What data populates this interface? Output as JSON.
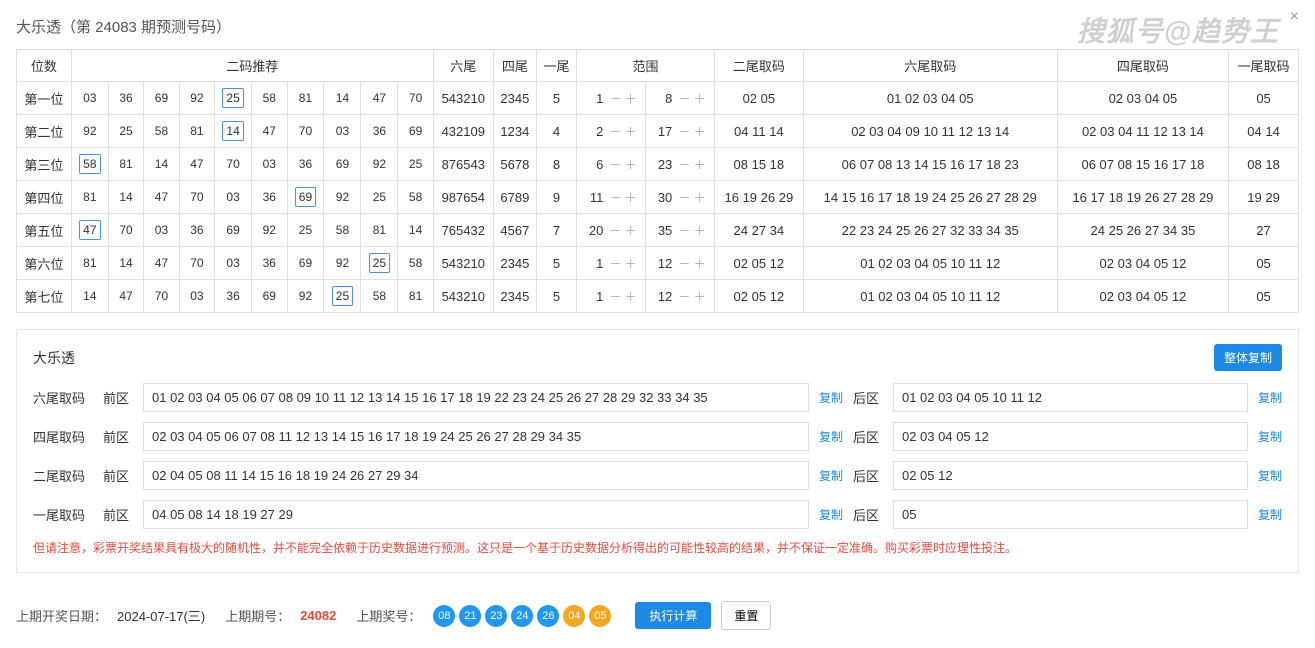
{
  "header": {
    "title": "大乐透（第 24083 期预测号码）",
    "watermark": "搜狐号@趋势王"
  },
  "table": {
    "headers": {
      "pos": "位数",
      "two_code": "二码推荐",
      "six_tail": "六尾",
      "four_tail": "四尾",
      "one_tail": "一尾",
      "range": "范围",
      "two_take": "二尾取码",
      "six_take": "六尾取码",
      "four_take": "四尾取码",
      "one_take": "一尾取码"
    },
    "rows": [
      {
        "pos": "第一位",
        "nums": [
          "03",
          "36",
          "69",
          "92",
          "25",
          "58",
          "81",
          "14",
          "47",
          "70"
        ],
        "hl": 4,
        "six": "543210",
        "four": "2345",
        "one": "5",
        "r1": 1,
        "r2": 8,
        "t2": "02 05",
        "t6": "01 02 03 04 05",
        "t4": "02 03 04 05",
        "t1": "05"
      },
      {
        "pos": "第二位",
        "nums": [
          "92",
          "25",
          "58",
          "81",
          "14",
          "47",
          "70",
          "03",
          "36",
          "69"
        ],
        "hl": 4,
        "six": "432109",
        "four": "1234",
        "one": "4",
        "r1": 2,
        "r2": 17,
        "t2": "04 11 14",
        "t6": "02 03 04 09 10 11 12 13 14",
        "t4": "02 03 04 11 12 13 14",
        "t1": "04 14"
      },
      {
        "pos": "第三位",
        "nums": [
          "58",
          "81",
          "14",
          "47",
          "70",
          "03",
          "36",
          "69",
          "92",
          "25"
        ],
        "hl": 0,
        "six": "876543",
        "four": "5678",
        "one": "8",
        "r1": 6,
        "r2": 23,
        "t2": "08 15 18",
        "t6": "06 07 08 13 14 15 16 17 18 23",
        "t4": "06 07 08 15 16 17 18",
        "t1": "08 18"
      },
      {
        "pos": "第四位",
        "nums": [
          "81",
          "14",
          "47",
          "70",
          "03",
          "36",
          "69",
          "92",
          "25",
          "58"
        ],
        "hl": 6,
        "six": "987654",
        "four": "6789",
        "one": "9",
        "r1": 11,
        "r2": 30,
        "t2": "16 19 26 29",
        "t6": "14 15 16 17 18 19 24 25 26 27 28 29",
        "t4": "16 17 18 19 26 27 28 29",
        "t1": "19 29"
      },
      {
        "pos": "第五位",
        "nums": [
          "47",
          "70",
          "03",
          "36",
          "69",
          "92",
          "25",
          "58",
          "81",
          "14"
        ],
        "hl": 0,
        "six": "765432",
        "four": "4567",
        "one": "7",
        "r1": 20,
        "r2": 35,
        "t2": "24 27 34",
        "t6": "22 23 24 25 26 27 32 33 34 35",
        "t4": "24 25 26 27 34 35",
        "t1": "27"
      },
      {
        "pos": "第六位",
        "nums": [
          "81",
          "14",
          "47",
          "70",
          "03",
          "36",
          "69",
          "92",
          "25",
          "58"
        ],
        "hl": 8,
        "six": "543210",
        "four": "2345",
        "one": "5",
        "r1": 1,
        "r2": 12,
        "t2": "02 05 12",
        "t6": "01 02 03 04 05 10 11 12",
        "t4": "02 03 04 05 12",
        "t1": "05"
      },
      {
        "pos": "第七位",
        "nums": [
          "14",
          "47",
          "70",
          "03",
          "36",
          "69",
          "92",
          "25",
          "58",
          "81"
        ],
        "hl": 7,
        "six": "543210",
        "four": "2345",
        "one": "5",
        "r1": 1,
        "r2": 12,
        "t2": "02 05 12",
        "t6": "01 02 03 04 05 10 11 12",
        "t4": "02 03 04 05 12",
        "t1": "05"
      }
    ]
  },
  "section2": {
    "title": "大乐透",
    "copy_all": "整体复制",
    "copy": "复制",
    "front_label": "前区",
    "back_label": "后区",
    "rows": [
      {
        "label": "六尾取码",
        "front": "01 02 03 04 05 06 07 08 09 10 11 12 13 14 15 16 17 18 19 22 23 24 25 26 27 28 29 32 33 34 35",
        "back": "01 02 03 04 05 10 11 12"
      },
      {
        "label": "四尾取码",
        "front": "02 03 04 05 06 07 08 11 12 13 14 15 16 17 18 19 24 25 26 27 28 29 34 35",
        "back": "02 03 04 05 12"
      },
      {
        "label": "二尾取码",
        "front": "02 04 05 08 11 14 15 16 18 19 24 26 27 29 34",
        "back": "02 05 12"
      },
      {
        "label": "一尾取码",
        "front": "04 05 08 14 18 19 27 29",
        "back": "05"
      }
    ],
    "warning": "但请注意，彩票开奖结果具有极大的随机性，并不能完全依赖于历史数据进行预测。这只是一个基于历史数据分析得出的可能性较高的结果，并不保证一定准确。购买彩票时应理性投注。"
  },
  "footer": {
    "date_label": "上期开奖日期：",
    "date_val": "2024-07-17(三)",
    "issue_label": "上期期号：",
    "issue_val": "24082",
    "prize_label": "上期奖号：",
    "blue_balls": [
      "08",
      "21",
      "23",
      "24",
      "26"
    ],
    "yellow_balls": [
      "04",
      "05"
    ],
    "calc": "执行计算",
    "reset": "重置"
  }
}
